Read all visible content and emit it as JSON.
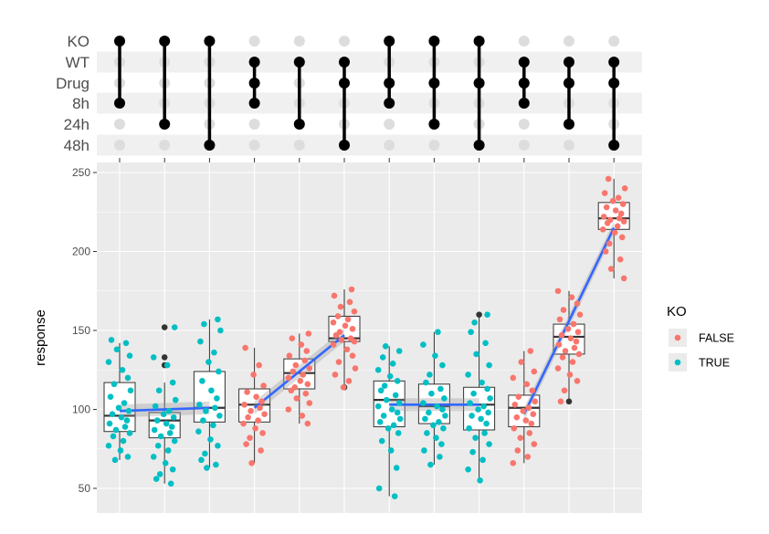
{
  "chart_data": {
    "type": "upset-boxplot",
    "ylabel": "response",
    "ylim": [
      40,
      255
    ],
    "yticks": [
      50,
      100,
      150,
      200,
      250
    ],
    "sets": [
      "KO",
      "WT",
      "Drug",
      "8h",
      "24h",
      "48h"
    ],
    "intersections": [
      {
        "members": [
          "KO",
          "8h"
        ],
        "ko": true,
        "median": 96,
        "q1": 86,
        "q3": 117,
        "whisker_low": 68,
        "whisker_high": 142,
        "points": [
          144,
          142,
          138,
          134,
          130,
          125,
          120,
          116,
          112,
          108,
          104,
          101,
          99,
          97,
          95,
          93,
          91,
          89,
          87,
          85,
          83,
          80,
          77,
          74,
          70,
          68
        ]
      },
      {
        "members": [
          "KO",
          "24h"
        ],
        "ko": true,
        "median": 93,
        "q1": 82,
        "q3": 98,
        "whisker_low": 53,
        "whisker_high": 117,
        "outliers": [
          152,
          133,
          128
        ],
        "points": [
          152,
          133,
          128,
          117,
          112,
          106,
          102,
          99,
          97,
          95,
          93,
          91,
          89,
          87,
          85,
          83,
          80,
          77,
          74,
          70,
          66,
          62,
          59,
          56,
          53
        ]
      },
      {
        "members": [
          "KO",
          "48h"
        ],
        "ko": true,
        "median": 101,
        "q1": 92,
        "q3": 124,
        "whisker_low": 63,
        "whisker_high": 157,
        "points": [
          157,
          154,
          150,
          143,
          136,
          130,
          124,
          118,
          112,
          107,
          103,
          101,
          99,
          96,
          93,
          90,
          86,
          81,
          77,
          72,
          68,
          65,
          63
        ]
      },
      {
        "members": [
          "WT",
          "Drug",
          "8h"
        ],
        "ko": false,
        "median": 103,
        "q1": 92,
        "q3": 113,
        "whisker_low": 66,
        "whisker_high": 139,
        "points": [
          139,
          128,
          122,
          115,
          111,
          108,
          105,
          103,
          101,
          99,
          97,
          95,
          93,
          91,
          88,
          85,
          82,
          78,
          74,
          66
        ]
      },
      {
        "members": [
          "WT",
          "24h"
        ],
        "ko": false,
        "median": 123,
        "q1": 113,
        "q3": 132,
        "whisker_low": 91,
        "whisker_high": 148,
        "points": [
          148,
          145,
          141,
          137,
          134,
          131,
          128,
          126,
          124,
          122,
          120,
          118,
          116,
          114,
          112,
          110,
          107,
          104,
          100,
          96,
          91
        ]
      },
      {
        "members": [
          "WT",
          "Drug",
          "48h"
        ],
        "ko": false,
        "median": 145,
        "q1": 143,
        "q3": 159,
        "whisker_low": 114,
        "whisker_high": 176,
        "outliers": [
          114
        ],
        "points": [
          176,
          172,
          168,
          165,
          162,
          159,
          157,
          155,
          153,
          151,
          149,
          147,
          145,
          144,
          143,
          141,
          138,
          134,
          130,
          126,
          122,
          118,
          114
        ]
      },
      {
        "members": [
          "KO",
          "Drug",
          "8h"
        ],
        "ko": true,
        "median": 106,
        "q1": 89,
        "q3": 118,
        "whisker_low": 45,
        "whisker_high": 140,
        "points": [
          140,
          137,
          133,
          129,
          125,
          121,
          118,
          115,
          112,
          109,
          106,
          104,
          102,
          100,
          98,
          96,
          94,
          92,
          90,
          88,
          85,
          80,
          74,
          63,
          50,
          45
        ]
      },
      {
        "members": [
          "KO",
          "Drug",
          "24h"
        ],
        "ko": true,
        "median": 102,
        "q1": 91,
        "q3": 116,
        "whisker_low": 65,
        "whisker_high": 149,
        "points": [
          149,
          141,
          134,
          128,
          122,
          117,
          113,
          110,
          107,
          104,
          102,
          100,
          98,
          96,
          94,
          92,
          90,
          88,
          85,
          82,
          78,
          74,
          70,
          65
        ]
      },
      {
        "members": [
          "KO",
          "Drug",
          "48h"
        ],
        "ko": true,
        "median": 103,
        "q1": 87,
        "q3": 114,
        "whisker_low": 55,
        "whisker_high": 160,
        "outliers": [
          160
        ],
        "points": [
          160,
          155,
          149,
          142,
          135,
          128,
          122,
          117,
          113,
          110,
          107,
          104,
          102,
          100,
          98,
          96,
          94,
          91,
          88,
          85,
          82,
          78,
          73,
          68,
          62,
          55
        ]
      },
      {
        "members": [
          "WT",
          "Drug",
          "8h"
        ],
        "ko": false,
        "median": 101,
        "q1": 89,
        "q3": 109,
        "whisker_low": 66,
        "whisker_high": 137,
        "points": [
          137,
          130,
          124,
          120,
          116,
          112,
          108,
          105,
          103,
          101,
          99,
          97,
          95,
          93,
          91,
          88,
          85,
          82,
          78,
          74,
          70,
          66
        ]
      },
      {
        "members": [
          "WT",
          "Drug",
          "24h"
        ],
        "ko": false,
        "median": 146,
        "q1": 135,
        "q3": 154,
        "whisker_low": 105,
        "whisker_high": 175,
        "outliers": [
          105
        ],
        "points": [
          175,
          171,
          167,
          163,
          160,
          157,
          154,
          151,
          149,
          147,
          145,
          143,
          141,
          139,
          137,
          135,
          133,
          130,
          126,
          122,
          118,
          112,
          105
        ]
      },
      {
        "members": [
          "WT",
          "Drug",
          "48h"
        ],
        "ko": false,
        "median": 221,
        "q1": 214,
        "q3": 231,
        "whisker_low": 183,
        "whisker_high": 246,
        "points": [
          246,
          240,
          237,
          234,
          232,
          230,
          228,
          226,
          224,
          222,
          221,
          220,
          219,
          218,
          216,
          214,
          212,
          209,
          205,
          200,
          195,
          189,
          183
        ]
      }
    ],
    "trend_lines": [
      {
        "groups": [
          1,
          2,
          3
        ],
        "ko": true,
        "y": [
          99,
          101
        ]
      },
      {
        "groups": [
          4,
          5,
          6
        ],
        "ko": false,
        "y": [
          101,
          147
        ]
      },
      {
        "groups": [
          7,
          8,
          9
        ],
        "ko": true,
        "y": [
          103,
          103
        ]
      },
      {
        "groups": [
          10,
          11,
          12
        ],
        "ko": false,
        "y": [
          97,
          215
        ]
      }
    ],
    "legend": {
      "title": "KO",
      "entries": [
        {
          "label": "FALSE",
          "color": "#f8766d"
        },
        {
          "label": "TRUE",
          "color": "#00bfc4"
        }
      ],
      "placement": "right"
    }
  },
  "colors": {
    "false_color": "#f8766d",
    "true_color": "#00bfc4",
    "trend_color": "#3366ff",
    "panel_bg": "#ebebeb",
    "grid": "#ffffff",
    "inactive_dot": "#dddddd",
    "stripe": "#f0f0f0"
  }
}
